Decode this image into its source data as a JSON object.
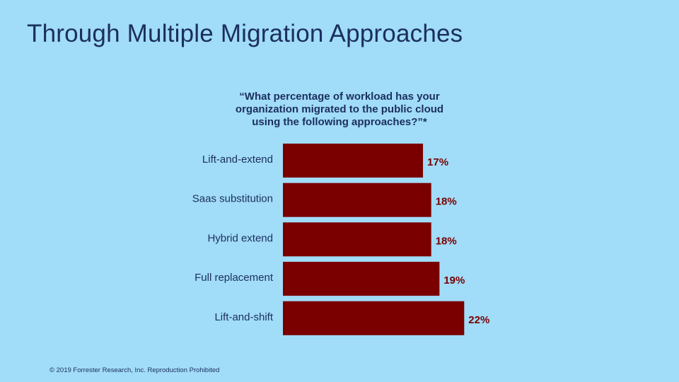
{
  "slide": {
    "title": "Through Multiple Migration Approaches",
    "question_lines": [
      "“What percentage of workload has your",
      "organization migrated to the public cloud",
      "using the following approaches?”*"
    ],
    "footer": "© 2019 Forrester Research, Inc. Reproduction Prohibited"
  },
  "chart_data": {
    "type": "bar",
    "orientation": "horizontal",
    "categories": [
      "Lift-and-extend",
      "Saas substitution",
      "Hybrid extend",
      "Full replacement",
      "Lift-and-shift"
    ],
    "values": [
      17,
      18,
      18,
      19,
      22
    ],
    "value_labels": [
      "17%",
      "18%",
      "18%",
      "19%",
      "22%"
    ],
    "unit": "%",
    "bar_color": "#7a0000",
    "label_color": "#7a0000",
    "grid": false,
    "legend": "none"
  },
  "colors": {
    "background": "#a1dcf8",
    "text": "#1b2f5e"
  }
}
